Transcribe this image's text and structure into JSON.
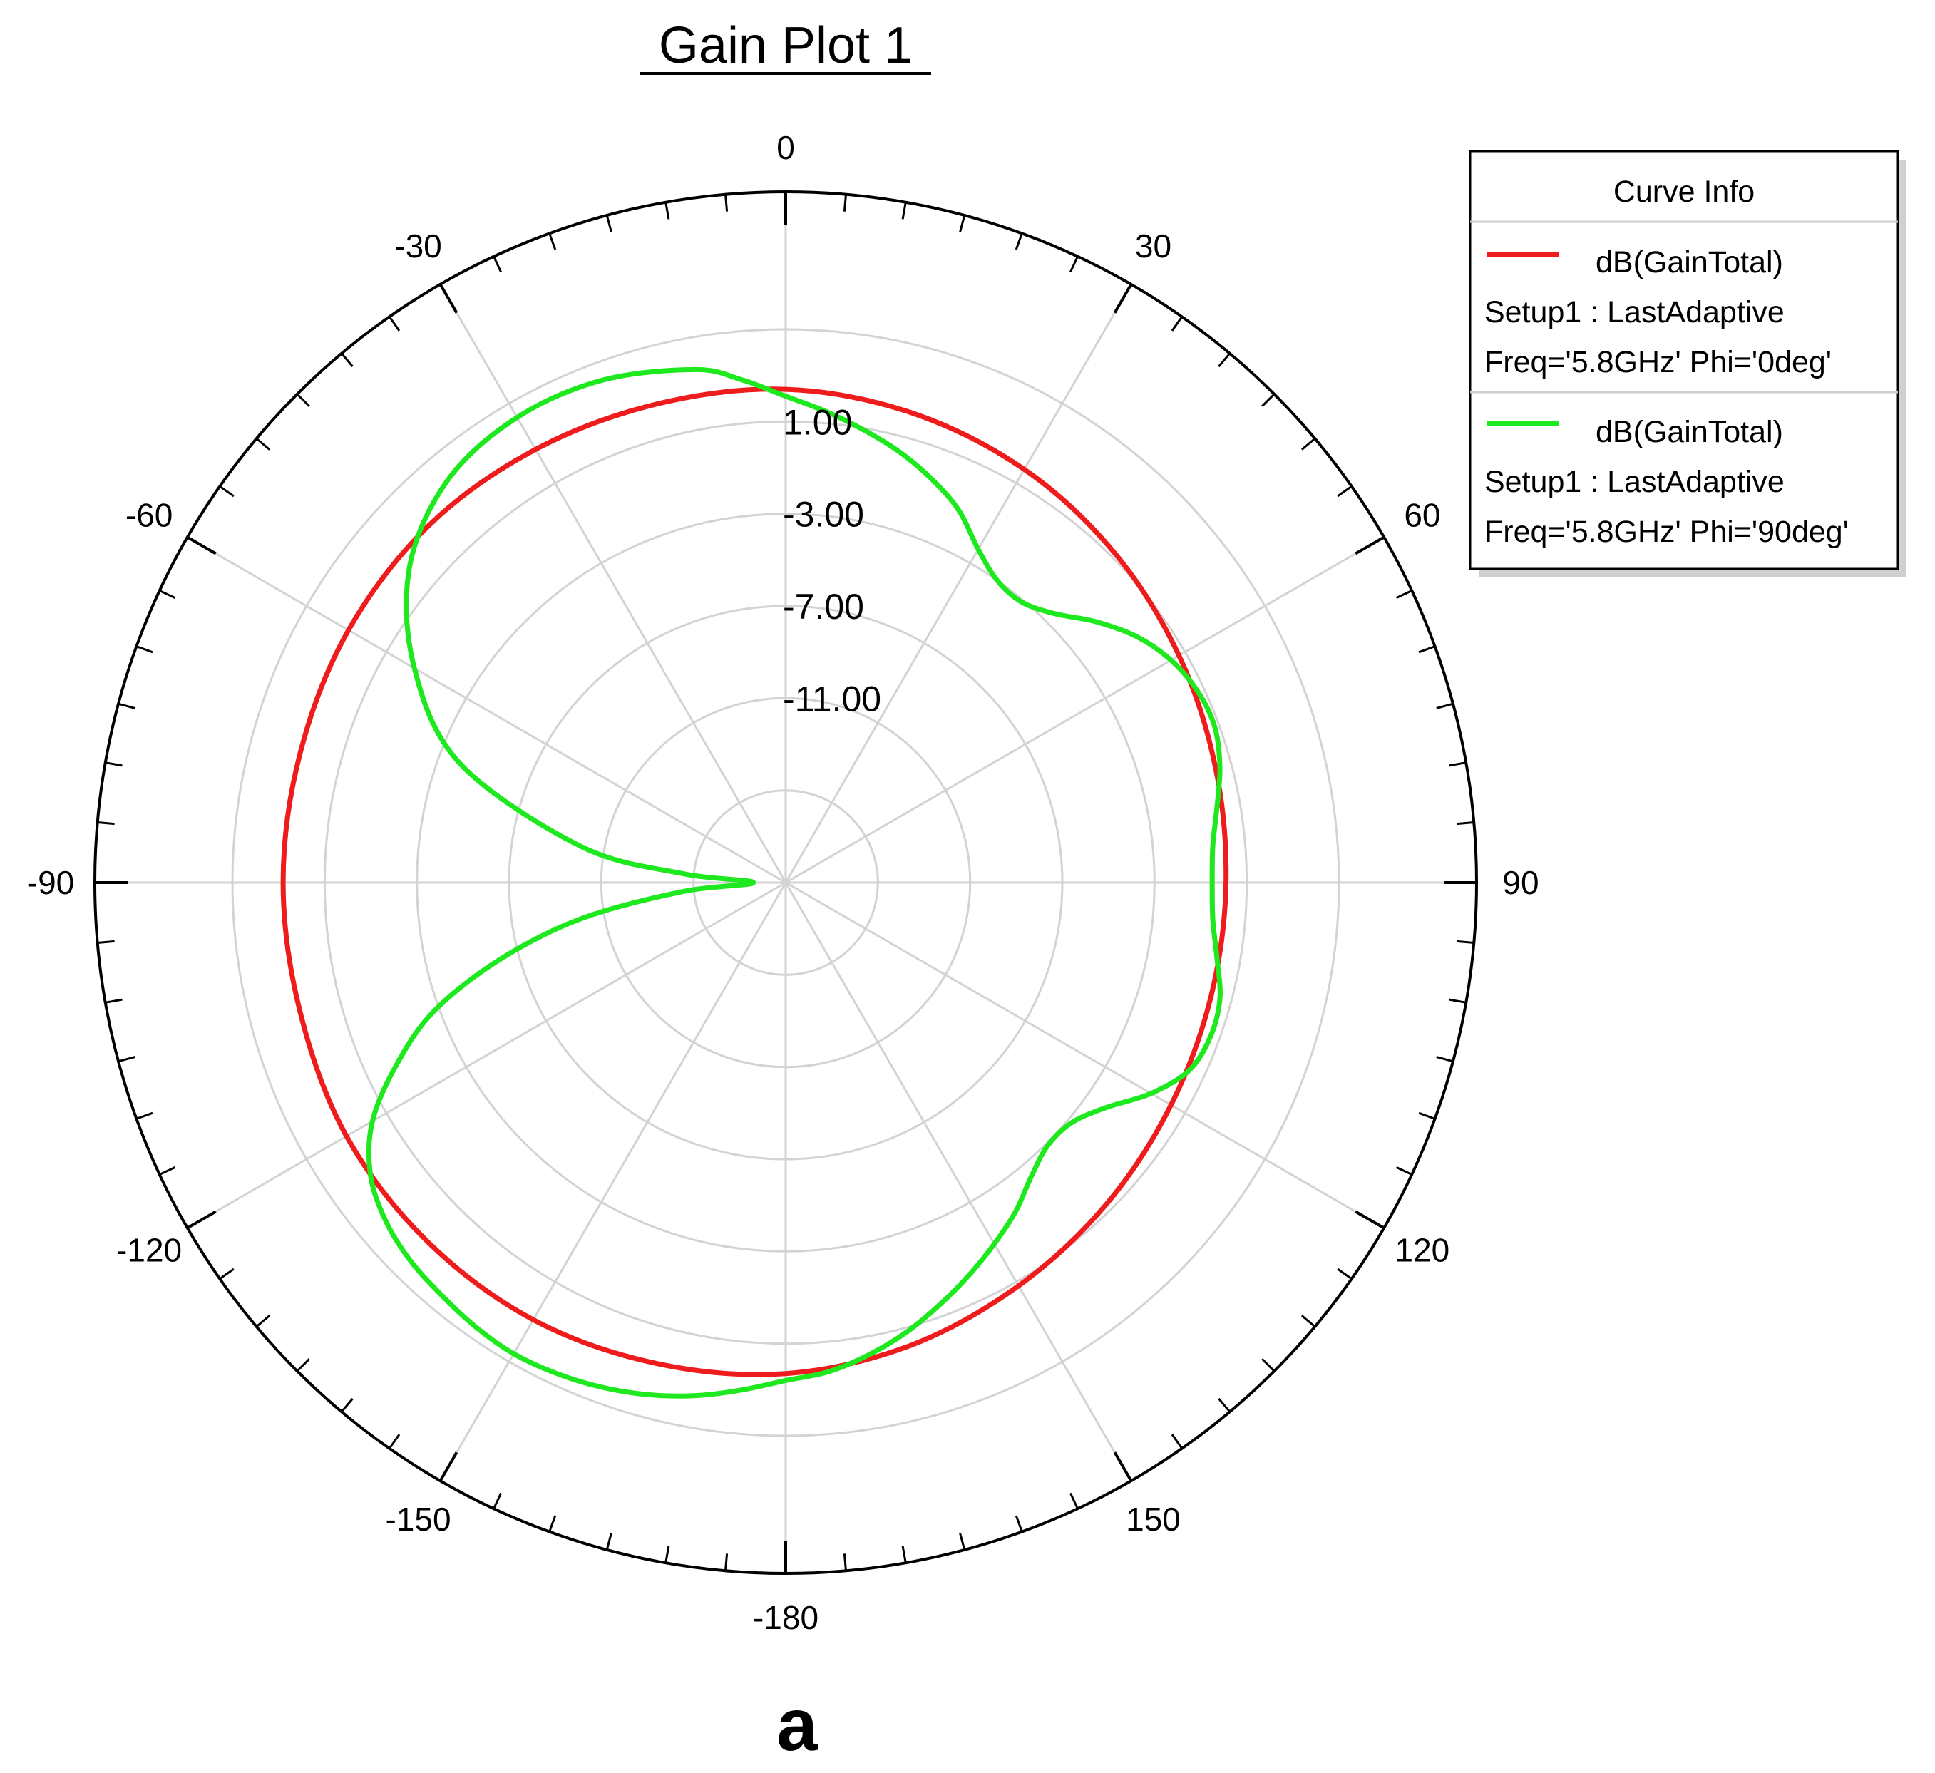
{
  "chart_data": {
    "type": "polar-line",
    "title": "Gain Plot 1",
    "panel_label": "a",
    "angle_unit": "deg",
    "angle_direction": "clockwise",
    "angle_zero": "top",
    "angle_tick_labels": [
      "0",
      "30",
      "60",
      "90",
      "120",
      "150",
      "-180",
      "-150",
      "-120",
      "-90",
      "-60",
      "-30"
    ],
    "angle_tick_values": [
      0,
      30,
      60,
      90,
      120,
      150,
      180,
      -150,
      -120,
      -90,
      -60,
      -30
    ],
    "radial_range": [
      -19,
      5
    ],
    "radial_tick_values": [
      1,
      -3,
      -7,
      -11
    ],
    "radial_tick_labels": [
      "1.00",
      "-3.00",
      "-7.00",
      "-11.00"
    ],
    "grid": true,
    "legend": {
      "title": "Curve Info",
      "placement": "top-right",
      "entries": [
        {
          "label": "dB(GainTotal)",
          "setup": "Setup1 : LastAdaptive",
          "params": "Freq='5.8GHz' Phi='0deg'",
          "color": "#ee1c1c"
        },
        {
          "label": "dB(GainTotal)",
          "setup": "Setup1 : LastAdaptive",
          "params": "Freq='5.8GHz' Phi='90deg'",
          "color": "#1ee81e"
        }
      ]
    },
    "series": [
      {
        "name": "dB(GainTotal) Phi='0deg'",
        "color": "#ee1c1c",
        "theta": [
          0,
          15,
          30,
          45,
          60,
          75,
          90,
          105,
          120,
          135,
          150,
          165,
          180,
          -165,
          -150,
          -135,
          -120,
          -105,
          -90,
          -75,
          -60,
          -45,
          -30,
          -15
        ],
        "r": [
          2.4,
          2.1,
          1.7,
          1.2,
          0.7,
          0.3,
          0.1,
          0.1,
          0.3,
          0.7,
          1.2,
          1.8,
          2.3,
          2.6,
          2.9,
          3.0,
          3.0,
          2.8,
          2.8,
          2.8,
          2.9,
          2.9,
          2.7,
          2.5
        ]
      },
      {
        "name": "dB(GainTotal) Phi='90deg'",
        "color": "#1ee81e",
        "theta": [
          0,
          5,
          10,
          15,
          20,
          25,
          30,
          35,
          40,
          45,
          50,
          55,
          60,
          65,
          70,
          75,
          80,
          85,
          90,
          95,
          100,
          105,
          110,
          115,
          120,
          125,
          130,
          135,
          140,
          145,
          150,
          155,
          160,
          165,
          170,
          175,
          180,
          -175,
          -170,
          -165,
          -160,
          -155,
          -150,
          -145,
          -140,
          -135,
          -130,
          -125,
          -120,
          -115,
          -110,
          -105,
          -100,
          -95,
          -90,
          -85,
          -80,
          -70,
          -60,
          -50,
          -40,
          -30,
          -20,
          -10,
          -5
        ],
        "r": [
          2.1,
          1.5,
          0.9,
          0.3,
          -0.4,
          -1.2,
          -2.3,
          -3.0,
          -3.1,
          -2.5,
          -1.4,
          -0.4,
          0.3,
          0.7,
          0.8,
          0.5,
          0.0,
          -0.4,
          -0.5,
          -0.4,
          0.0,
          0.5,
          0.6,
          0.3,
          -0.7,
          -2.0,
          -2.8,
          -2.9,
          -2.4,
          -1.6,
          -0.9,
          -0.2,
          0.5,
          1.2,
          1.8,
          2.3,
          2.6,
          3.1,
          3.6,
          4.0,
          4.3,
          4.5,
          4.6,
          4.5,
          4.3,
          4.1,
          3.7,
          3.0,
          1.7,
          -0.4,
          -2.8,
          -6.2,
          -10.0,
          -14.5,
          -17.6,
          -14.5,
          -10.0,
          -4.0,
          -0.4,
          2.3,
          3.8,
          4.3,
          4.2,
          3.6,
          2.9
        ]
      }
    ]
  }
}
